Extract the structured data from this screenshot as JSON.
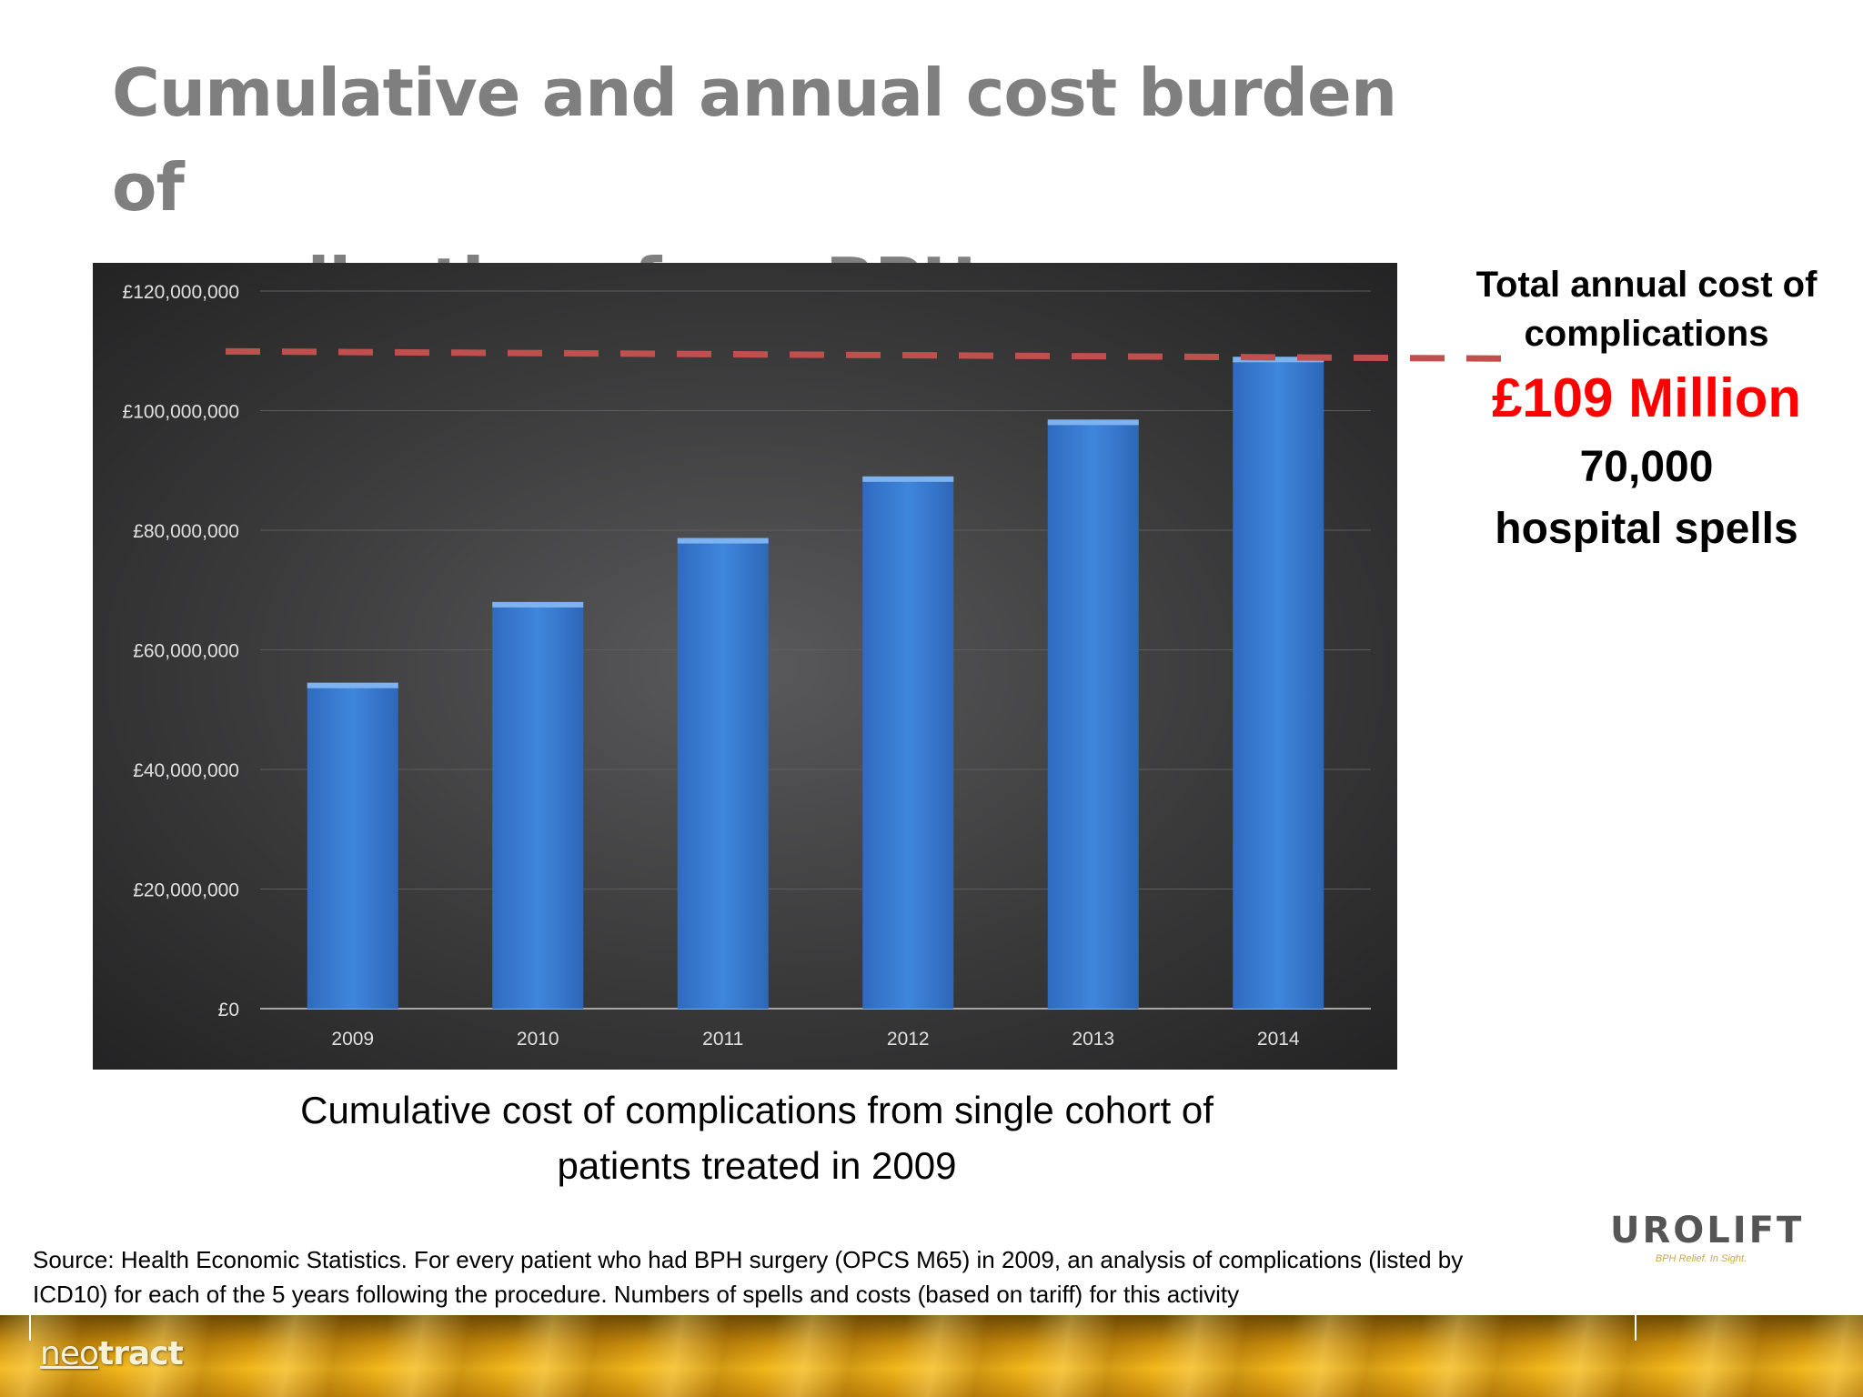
{
  "title": {
    "line1": "Cumulative and annual cost burden of",
    "line2": "complications from BPH surgery"
  },
  "chart_data": {
    "type": "bar",
    "categories": [
      "2009",
      "2010",
      "2011",
      "2012",
      "2013",
      "2014"
    ],
    "values": [
      54500000,
      68000000,
      78700000,
      89000000,
      98500000,
      109000000
    ],
    "ylim": [
      0,
      120000000
    ],
    "yticks": [
      0,
      20000000,
      40000000,
      60000000,
      80000000,
      100000000,
      120000000
    ],
    "ytick_labels": [
      "£0",
      "£20,000,000",
      "£40,000,000",
      "£60,000,000",
      "£80,000,000",
      "£100,000,000",
      "£120,000,000"
    ],
    "grid": true,
    "bar_color": "#3c7fd6",
    "reference_line": {
      "style": "dashed",
      "color": "#c0504d",
      "value": 109000000
    }
  },
  "callout": {
    "line1": "Total annual cost of",
    "line2": "complications",
    "amount": "£109 Million",
    "spells_count": "70,000",
    "spells_label": "hospital spells",
    "amount_color": "#ff0000"
  },
  "caption": {
    "line1": "Cumulative cost of complications from single cohort of",
    "line2": "patients treated in 2009"
  },
  "source": {
    "line1": "Source: Health Economic Statistics. For every patient who had BPH surgery (OPCS M65) in 2009, an analysis of complications (listed by",
    "line2": "ICD10) for each of the 5 years following the procedure. Numbers of spells and costs (based on tariff) for this activity"
  },
  "logos": {
    "urolift": "UROLIFT",
    "urolift_tagline": "BPH Relief. In Sight.",
    "neotract_prefix": "neo",
    "neotract_suffix": "tract"
  }
}
